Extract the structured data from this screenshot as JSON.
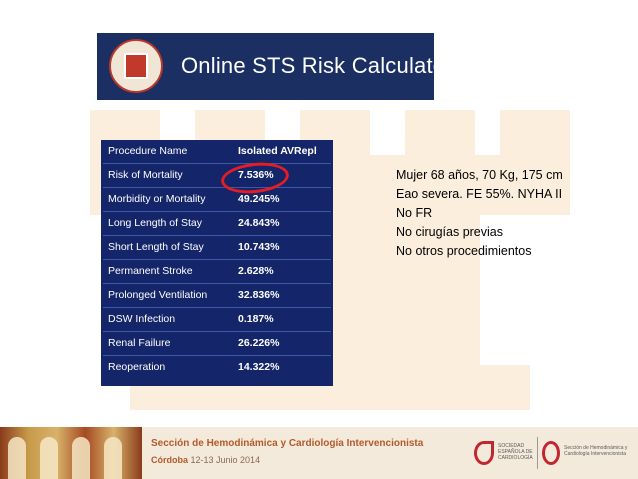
{
  "banner": {
    "title": "Online STS Risk Calculator"
  },
  "risk_table": [
    {
      "label": "Procedure Name",
      "value": "Isolated AVRepl"
    },
    {
      "label": "Risk of Mortality",
      "value": "7.536%"
    },
    {
      "label": "Morbidity or Mortality",
      "value": "49.245%"
    },
    {
      "label": "Long Length of Stay",
      "value": "24.843%"
    },
    {
      "label": "Short Length of Stay",
      "value": "10.743%"
    },
    {
      "label": "Permanent Stroke",
      "value": "2.628%"
    },
    {
      "label": "Prolonged Ventilation",
      "value": "32.836%"
    },
    {
      "label": "DSW Infection",
      "value": "0.187%"
    },
    {
      "label": "Renal Failure",
      "value": "26.226%"
    },
    {
      "label": "Reoperation",
      "value": "14.322%"
    }
  ],
  "case_notes": [
    "Mujer 68 años, 70 Kg, 175 cm",
    "Eao severa. FE 55%. NYHA II",
    "No FR",
    "No cirugías previas",
    "No otros procedimientos"
  ],
  "footer": {
    "title": "Sección de Hemodinámica y Cardiología Intervencionista",
    "city": "Córdoba",
    "date": "12-13 Junio 2014",
    "logo_sec": "SOCIEDAD ESPAÑOLA DE CARDIOLOGÍA",
    "logo_hem": "Sección de Hemodinámica y Cardiología Intervencionista"
  },
  "colors": {
    "panel": "#14256a",
    "banner": "#1b2f63",
    "highlight": "#e21d24",
    "footer_text": "#b35a2a"
  },
  "icons": {
    "seal": "sts-seal-icon",
    "watermark": "chess-rook-icon"
  }
}
